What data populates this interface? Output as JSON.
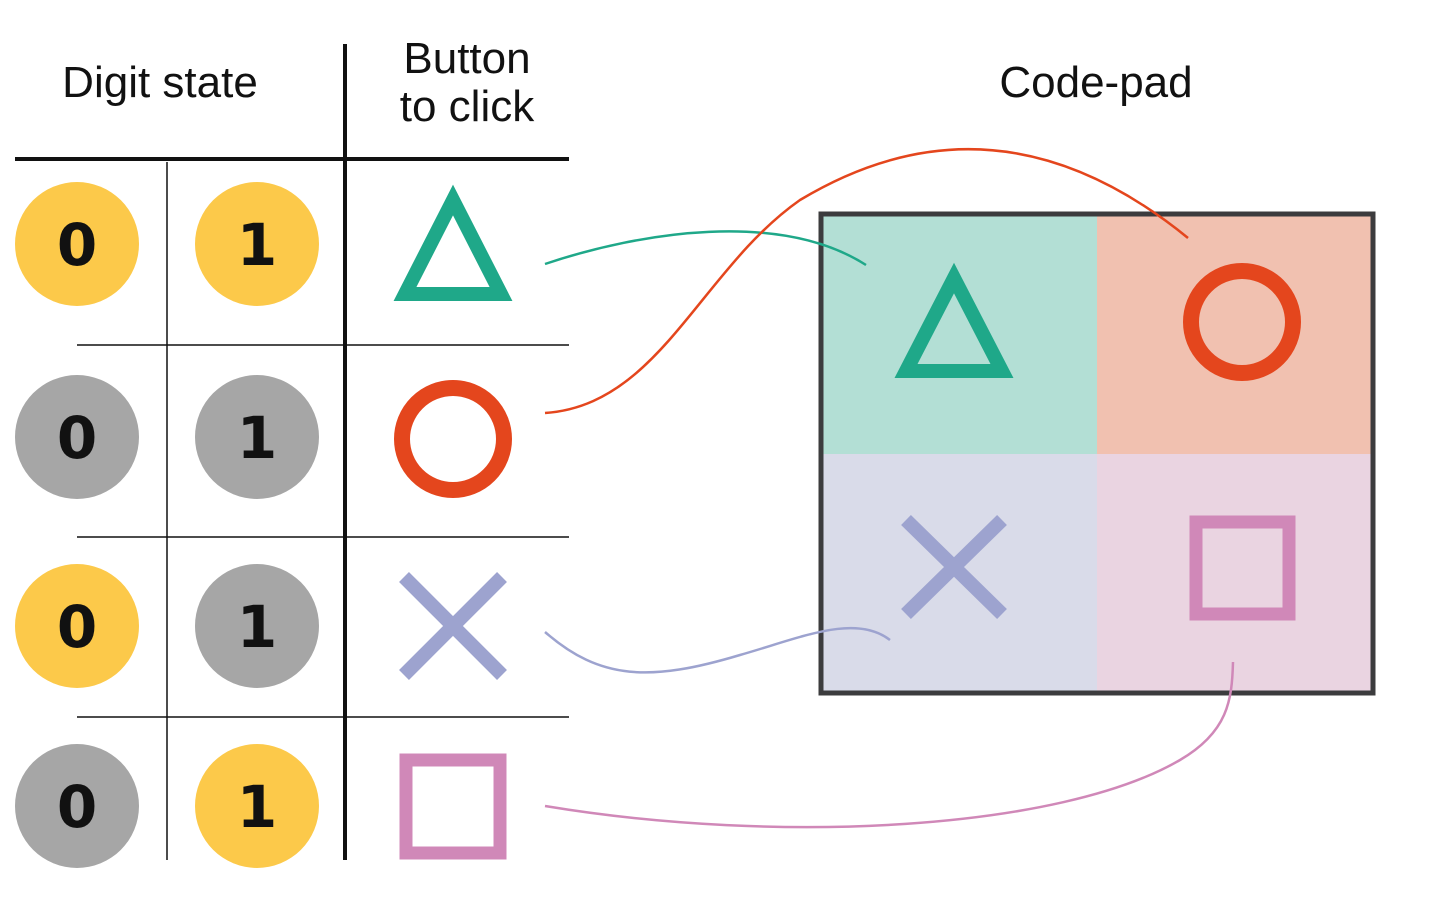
{
  "headers": {
    "digit_state": "Digit state",
    "button_line1": "Button",
    "button_line2": "to click",
    "codepad": "Code-pad"
  },
  "rows": [
    {
      "left": {
        "text": "0",
        "state": "on"
      },
      "right": {
        "text": "1",
        "state": "on"
      },
      "button": "triangle-icon"
    },
    {
      "left": {
        "text": "0",
        "state": "off"
      },
      "right": {
        "text": "1",
        "state": "off"
      },
      "button": "circle-icon"
    },
    {
      "left": {
        "text": "0",
        "state": "on"
      },
      "right": {
        "text": "1",
        "state": "off"
      },
      "button": "cross-icon"
    },
    {
      "left": {
        "text": "0",
        "state": "off"
      },
      "right": {
        "text": "1",
        "state": "on"
      },
      "button": "square-icon"
    }
  ],
  "colors": {
    "digit_on": "#FCC94A",
    "digit_off": "#A6A6A6",
    "triangle": "#1FA889",
    "circle": "#E4461D",
    "cross": "#9DA3CF",
    "square": "#D088B8",
    "triangle_bg": "#B3DFD5",
    "circle_bg": "#F1C1B0",
    "cross_bg": "#D9DBE9",
    "square_bg": "#EAD4E1",
    "pad_border": "#3C3C3E",
    "grid": "#111111"
  }
}
